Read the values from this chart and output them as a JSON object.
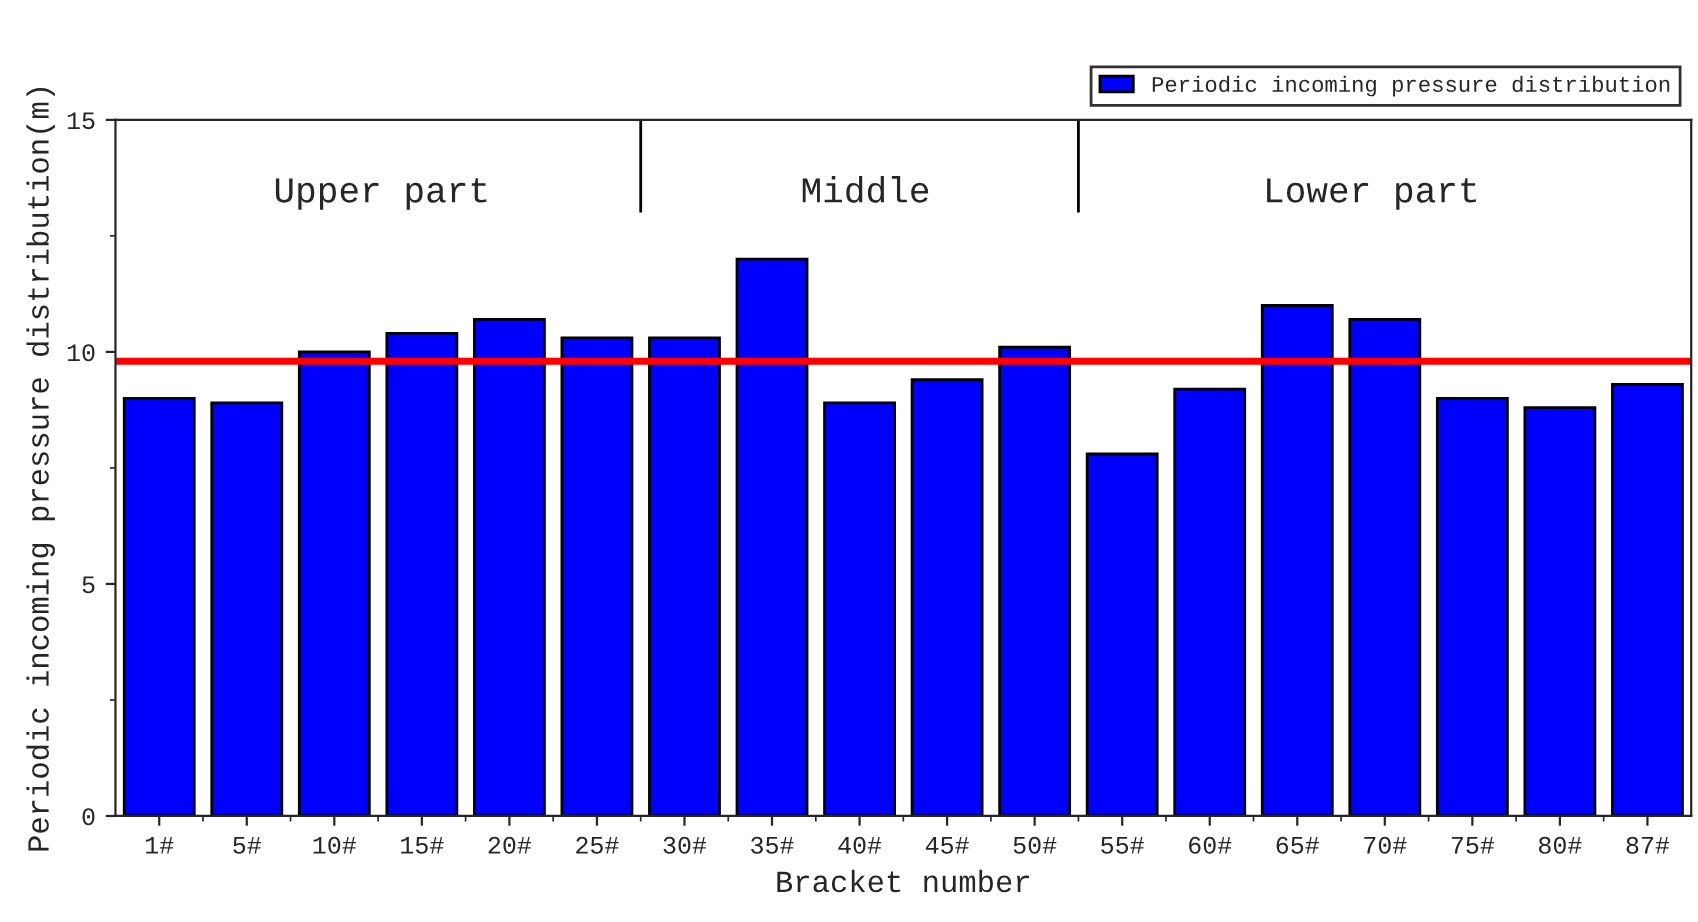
{
  "chart_data": {
    "type": "bar",
    "xlabel": "Bracket number",
    "ylabel": "Periodic incoming pressure distribution(m)",
    "categories": [
      "1#",
      "5#",
      "10#",
      "15#",
      "20#",
      "25#",
      "30#",
      "35#",
      "40#",
      "45#",
      "50#",
      "55#",
      "60#",
      "65#",
      "70#",
      "75#",
      "80#",
      "87#"
    ],
    "series": [
      {
        "name": "Periodic incoming pressure distribution",
        "color": "#0000ff",
        "values": [
          9.0,
          8.9,
          10.0,
          10.4,
          10.7,
          10.3,
          10.3,
          12.0,
          8.9,
          9.4,
          10.1,
          7.8,
          9.2,
          11.0,
          10.7,
          9.0,
          8.8,
          9.3
        ]
      }
    ],
    "ylim": [
      0,
      15
    ],
    "yticks": [
      0,
      5,
      10,
      15
    ],
    "ref_lines": [
      {
        "axis": "y",
        "value": 9.8,
        "color": "#ff0000"
      }
    ],
    "annotations": [
      "Upper part",
      "Middle",
      "Lower part"
    ],
    "legend": "top right",
    "grid": false
  }
}
